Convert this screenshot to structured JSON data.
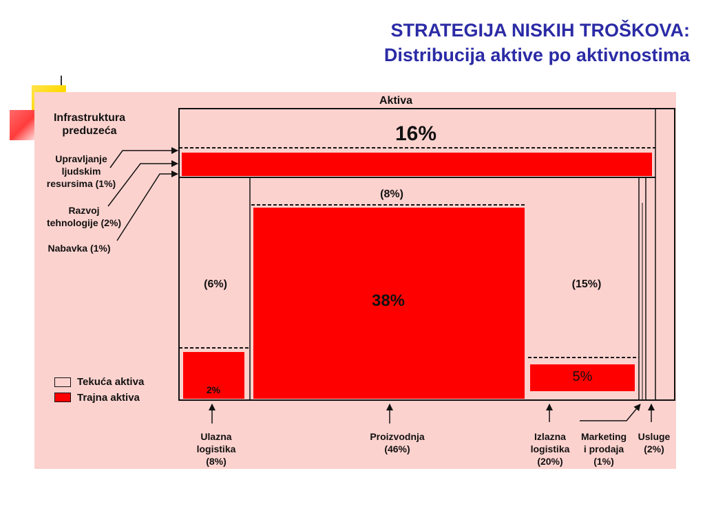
{
  "title": {
    "line1": "STRATEGIJA NISKIH TROŠKOVA:",
    "line2": "Distribucija aktive po aktivnostima"
  },
  "colors": {
    "title": "#2b2ba6",
    "panel_bg": "#fcd2ce",
    "fixed_assets": "#ff0000",
    "lines": "#111111"
  },
  "diagram": {
    "aktiva_label": "Aktiva",
    "infrastructure": {
      "heading_line1": "Infrastruktura",
      "heading_line2": "preduzeća",
      "value": "16%"
    },
    "support": [
      {
        "line1": "Upravljanje",
        "line2": "ljudskim",
        "line3": "resursima (1%)"
      },
      {
        "line1": "Razvoj",
        "line2": "tehnologije (2%)"
      },
      {
        "line1": "Nabavka (1%)"
      }
    ],
    "inbound": {
      "current": "(6%)",
      "fixed": "2%"
    },
    "production": {
      "current": "(8%)",
      "fixed": "38%"
    },
    "outbound": {
      "current": "(15%)",
      "fixed": "5%"
    },
    "legend": {
      "current_assets": "Tekuća aktiva",
      "fixed_assets": "Trajna aktiva"
    },
    "bottom_labels": {
      "inbound": {
        "line1": "Ulazna",
        "line2": "logistika",
        "line3": "(8%)"
      },
      "production": {
        "line1": "Proizvodnja",
        "line2": "(46%)"
      },
      "outbound": {
        "line1": "Izlazna",
        "line2": "logistika",
        "line3": "(20%)"
      },
      "marketing": {
        "line1": "Marketing",
        "line2": "i prodaja",
        "line3": "(1%)"
      },
      "services": {
        "line1": "Usluge",
        "line2": "(2%)"
      }
    }
  }
}
